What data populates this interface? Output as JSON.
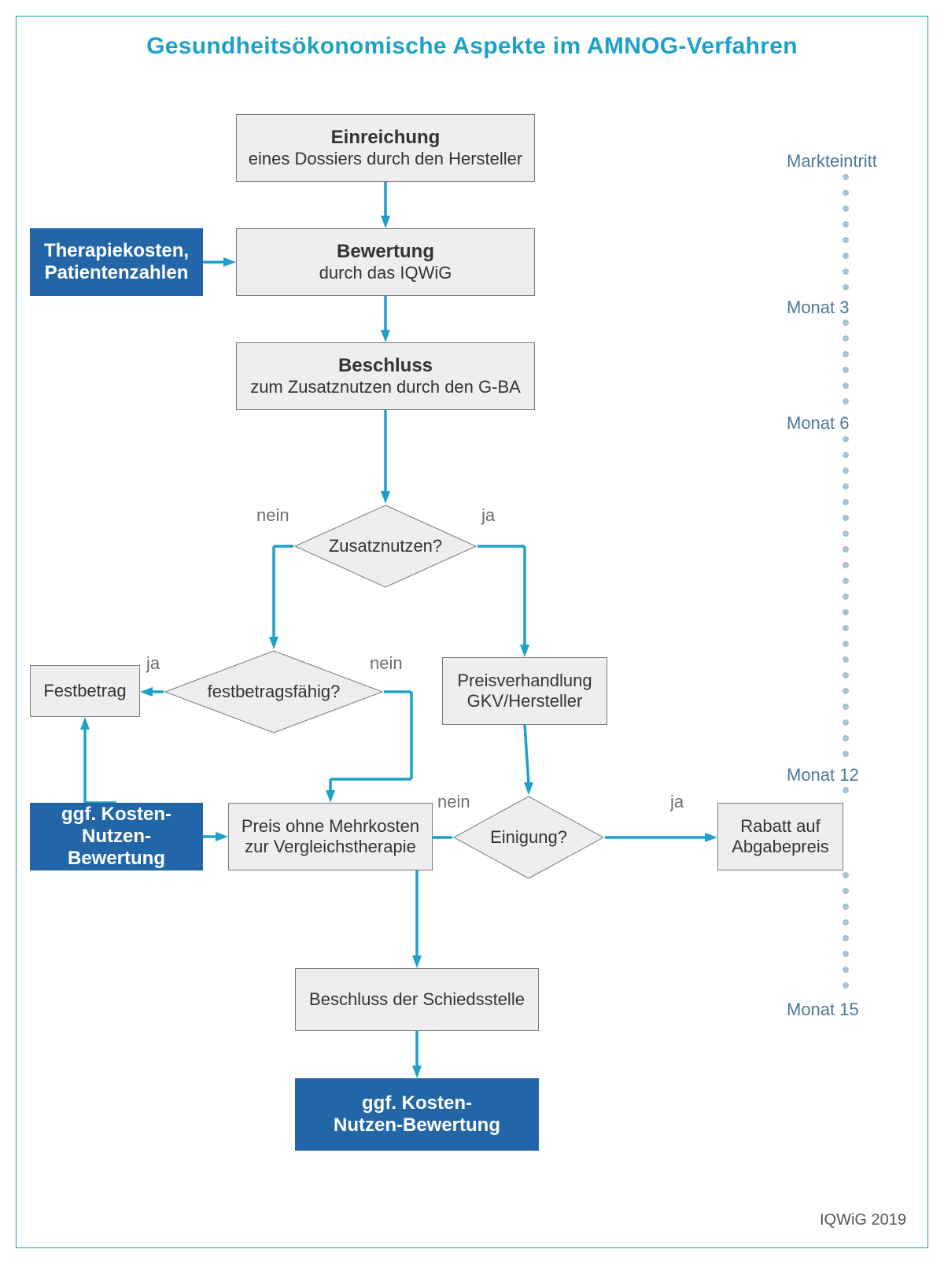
{
  "colors": {
    "background": "#ffffff",
    "frame_border": "#1ea1c9",
    "title": "#1ea1c9",
    "arrow": "#1ea1c9",
    "box_fill": "#eeeef0",
    "box_border": "#7a7a7a",
    "box_text": "#333333",
    "blue_fill": "#2266a8",
    "blue_text": "#ffffff",
    "decision_border": "#7a7a7a",
    "edge_label": "#6d6d6d",
    "timeline_text": "#4b7a94",
    "timeline_dot": "#a8c4d2",
    "source": "#555555"
  },
  "fonts": {
    "title_size": 30,
    "box_bold_size": 24,
    "box_sub_size": 22,
    "blue_size": 24,
    "decision_size": 22,
    "edge_label_size": 22,
    "timeline_size": 22,
    "source_size": 20
  },
  "title": "Gesundheitsökonomische Aspekte im AMNOG-Verfahren",
  "source": "IQWiG 2019",
  "nodes": {
    "einreichung": {
      "title": "Einreichung",
      "sub": "eines Dossiers durch den Hersteller"
    },
    "therapie_blue": {
      "line1": "Therapiekosten,",
      "line2": "Patientenzahlen"
    },
    "bewertung": {
      "title": "Bewertung",
      "sub": "durch das IQWiG"
    },
    "beschluss_gba": {
      "title": "Beschluss",
      "sub": "zum Zusatznutzen durch den G-BA"
    },
    "zusatznutzen": {
      "label": "Zusatznutzen?"
    },
    "festbetragsfaehig": {
      "label": "festbetragsfähig?"
    },
    "preisverhandlung": {
      "line1": "Preisverhandlung",
      "line2": "GKV/Hersteller"
    },
    "festbetrag": {
      "label": "Festbetrag"
    },
    "knb_blue": {
      "line1": "ggf. Kosten-",
      "line2": "Nutzen-Bewertung"
    },
    "preis_ohne": {
      "line1": "Preis ohne Mehrkosten",
      "line2": "zur Vergleichstherapie"
    },
    "einigung": {
      "label": "Einigung?"
    },
    "rabatt": {
      "line1": "Rabatt auf",
      "line2": "Abgabepreis"
    },
    "schiedsstelle": {
      "label": "Beschluss der Schiedsstelle"
    },
    "knb_final_blue": {
      "line1": "ggf. Kosten-",
      "line2": "Nutzen-Bewertung"
    }
  },
  "edge_labels": {
    "zusatz_nein": "nein",
    "zusatz_ja": "ja",
    "festbetrag_ja": "ja",
    "festbetrag_nein": "nein",
    "einigung_nein": "nein",
    "einigung_ja": "ja"
  },
  "timeline": {
    "markt": "Markteintritt",
    "m3": "Monat 3",
    "m6": "Monat 6",
    "m12": "Monat 12",
    "m15": "Monat 15"
  },
  "layout": {
    "arrow_stroke_width": 3.5,
    "arrow_head_len": 16,
    "arrow_head_w": 12,
    "timeline_dot_r": 4,
    "timeline_dot_gap": 20
  }
}
